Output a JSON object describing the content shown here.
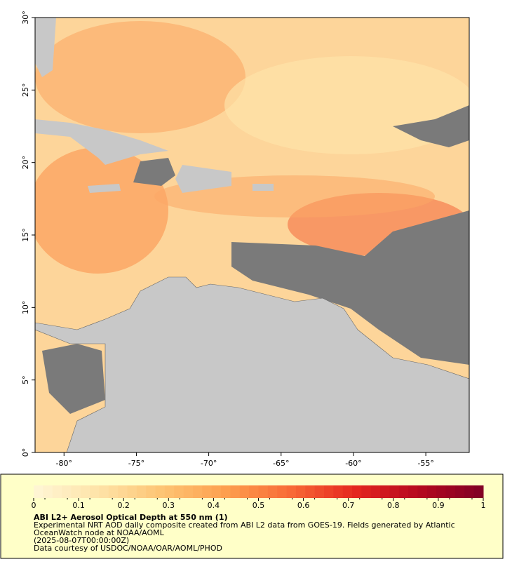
{
  "map": {
    "xlim": [
      -82,
      -52
    ],
    "ylim": [
      0,
      30
    ],
    "xticks": [
      {
        "value": -80,
        "label": "-80°"
      },
      {
        "value": -75,
        "label": "-75°"
      },
      {
        "value": -70,
        "label": "-70°"
      },
      {
        "value": -65,
        "label": "-65°"
      },
      {
        "value": -60,
        "label": "-60°"
      },
      {
        "value": -55,
        "label": "-55°"
      }
    ],
    "yticks": [
      {
        "value": 0,
        "label": "0°"
      },
      {
        "value": 5,
        "label": "5°"
      },
      {
        "value": 10,
        "label": "10°"
      },
      {
        "value": 15,
        "label": "15°"
      },
      {
        "value": 20,
        "label": "20°"
      },
      {
        "value": 25,
        "label": "25°"
      },
      {
        "value": 30,
        "label": "30°"
      }
    ]
  },
  "colorbar": {
    "lim": [
      0,
      1
    ],
    "ticks": [
      0,
      0.1,
      0.2,
      0.3,
      0.4,
      0.5,
      0.6,
      0.7,
      0.8,
      0.9,
      1
    ],
    "colormap": [
      "#fff6d6",
      "#fee3a8",
      "#fdc473",
      "#fd9f4e",
      "#f86a36",
      "#e5271f",
      "#b5081f",
      "#7f0026"
    ]
  },
  "caption": {
    "title": "ABI L2+ Aerosol Optical Depth at 550 nm (1)",
    "lines": [
      "Experimental NRT AOD daily composite created from ABI L2 data from GOES-19. Fields generated by Atlantic",
      "OceanWatch node at NOAA/AOML",
      "(2025-08-07T00:00:00Z)",
      "Data courtesy of USDOC/NOAA/OAR/AOML/PHOD"
    ]
  }
}
